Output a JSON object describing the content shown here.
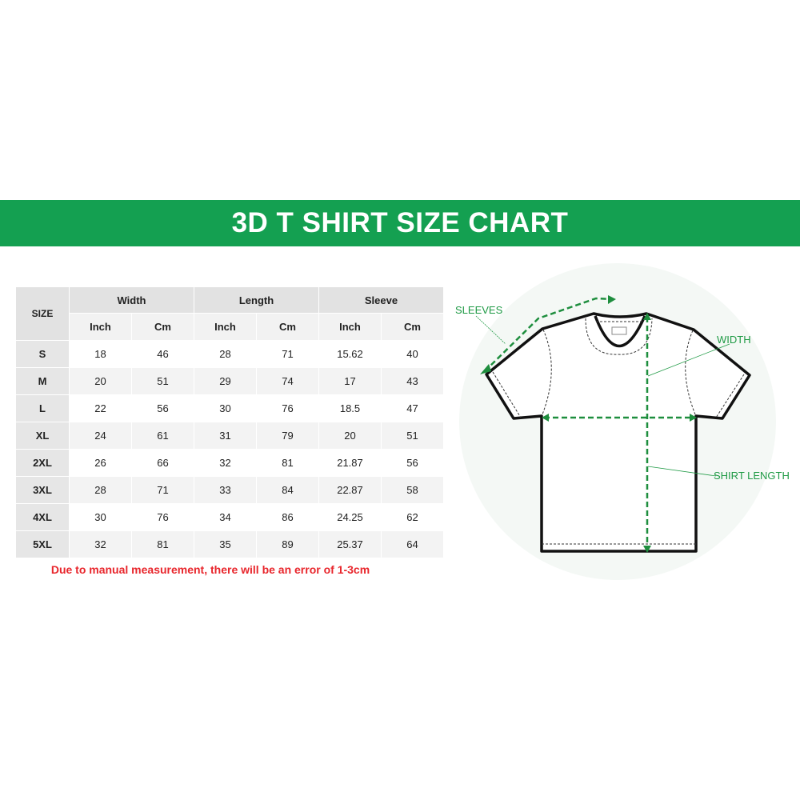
{
  "title": "3D T SHIRT SIZE CHART",
  "colors": {
    "banner": "#14a051",
    "accent_green": "#1f9a45",
    "note_red": "#e8262c"
  },
  "table": {
    "size_header": "SIZE",
    "groups": [
      "Width",
      "Length",
      "Sleeve"
    ],
    "units": [
      "Inch",
      "Cm",
      "Inch",
      "Cm",
      "Inch",
      "Cm"
    ],
    "rows": [
      [
        "S",
        "18",
        "46",
        "28",
        "71",
        "15.62",
        "40"
      ],
      [
        "M",
        "20",
        "51",
        "29",
        "74",
        "17",
        "43"
      ],
      [
        "L",
        "22",
        "56",
        "30",
        "76",
        "18.5",
        "47"
      ],
      [
        "XL",
        "24",
        "61",
        "31",
        "79",
        "20",
        "51"
      ],
      [
        "2XL",
        "26",
        "66",
        "32",
        "81",
        "21.87",
        "56"
      ],
      [
        "3XL",
        "28",
        "71",
        "33",
        "84",
        "22.87",
        "58"
      ],
      [
        "4XL",
        "30",
        "76",
        "34",
        "86",
        "24.25",
        "62"
      ],
      [
        "5XL",
        "32",
        "81",
        "35",
        "89",
        "25.37",
        "64"
      ]
    ]
  },
  "note": "Due to manual measurement, there will be an error of 1-3cm",
  "diagram": {
    "labels": {
      "sleeves": "SLEEVES",
      "width": "WIDTH",
      "shirt_length": "SHIRT LENGTH"
    }
  }
}
